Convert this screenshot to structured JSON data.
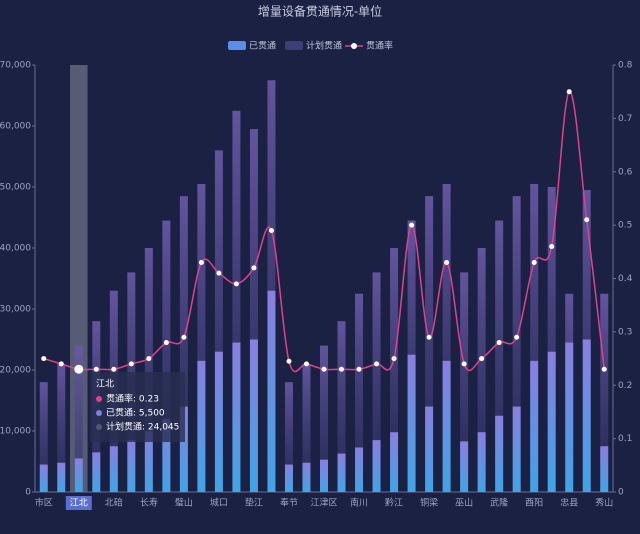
{
  "chart_data": {
    "type": "bar",
    "title": "增量设备贯通情况-单位",
    "categories": [
      "市区",
      null,
      "江北",
      null,
      "北碚",
      null,
      "长寿",
      null,
      "璧山",
      null,
      "城口",
      null,
      "垫江",
      null,
      "奉节",
      null,
      "江津区",
      null,
      "南川",
      null,
      "黔江",
      null,
      "铜梁",
      null,
      "巫山",
      null,
      "武隆",
      null,
      "酉阳",
      null,
      "忠县",
      null,
      "秀山"
    ],
    "series": [
      {
        "name": "已贯通",
        "color": "#5b8ee6",
        "values": [
          4500,
          4800,
          5500,
          6500,
          7500,
          8500,
          10000,
          12000,
          14000,
          21500,
          23000,
          24500,
          25000,
          33000,
          4500,
          4800,
          5300,
          6300,
          7300,
          8500,
          9800,
          22500,
          14000,
          21500,
          8300,
          9800,
          12500,
          14000,
          21500,
          23000,
          24500,
          25000,
          7500
        ]
      },
      {
        "name": "计划贯通",
        "color": "#6a5aa8",
        "values": [
          18000,
          21000,
          24045,
          28000,
          33000,
          36000,
          40000,
          44500,
          48500,
          50500,
          56000,
          62500,
          59500,
          67500,
          18000,
          21000,
          24000,
          28000,
          32500,
          36000,
          40000,
          44500,
          48500,
          50500,
          36000,
          40000,
          44500,
          48500,
          50500,
          50000,
          32500,
          49500,
          32500
        ]
      },
      {
        "name": "贯通率",
        "color": "#e0408f",
        "axis": "y2",
        "values": [
          0.25,
          0.24,
          0.23,
          0.23,
          0.23,
          0.24,
          0.25,
          0.28,
          0.29,
          0.43,
          0.41,
          0.39,
          0.42,
          0.49,
          0.245,
          0.24,
          0.23,
          0.23,
          0.23,
          0.24,
          0.25,
          0.5,
          0.29,
          0.43,
          0.24,
          0.25,
          0.28,
          0.29,
          0.43,
          0.46,
          0.75,
          0.51,
          0.23
        ]
      }
    ],
    "ylim": [
      0,
      70000
    ],
    "yticks": [
      0,
      {
        "value": 10000,
        "label": "10,000"
      },
      {
        "value": 20000,
        "label": "20,000"
      },
      {
        "value": 30000,
        "label": "30,000"
      },
      {
        "value": 40000,
        "label": "40,000"
      },
      {
        "value": 50000,
        "label": "50,000"
      },
      {
        "value": 60000,
        "label": "60,000"
      },
      {
        "value": 70000,
        "label": "70,000"
      }
    ],
    "y2lim": [
      0,
      0.8
    ],
    "y2ticks": [
      0,
      0.1,
      0.2,
      0.3,
      0.4,
      0.5,
      0.6,
      0.7,
      0.8
    ],
    "tooltip": {
      "title": "江北",
      "items": [
        "贯通率: 0.23",
        "已贯通: 5,500",
        "计划贯通: 24,045"
      ]
    }
  }
}
